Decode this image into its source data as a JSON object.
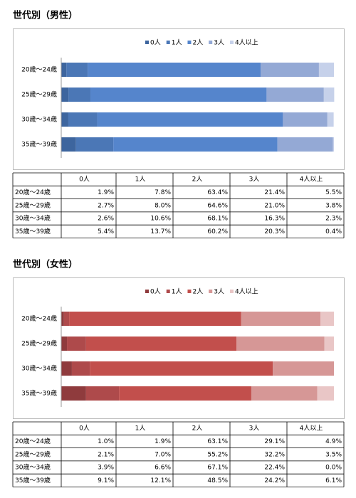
{
  "chart_data": [
    {
      "type": "bar",
      "orientation": "horizontal",
      "stacked": true,
      "legend": "top",
      "categories": [
        "20歳～24歳",
        "25歳～29歳",
        "30歳～34歳",
        "35歳～39歳"
      ],
      "series": [
        {
          "name": "0人",
          "color": "#3d659e",
          "values": [
            1.9,
            2.7,
            2.6,
            5.4
          ]
        },
        {
          "name": "1人",
          "color": "#4b77b6",
          "values": [
            7.8,
            8.0,
            10.6,
            13.7
          ]
        },
        {
          "name": "2人",
          "color": "#5585cc",
          "values": [
            63.4,
            64.6,
            68.1,
            60.2
          ]
        },
        {
          "name": "3人",
          "color": "#94a9d5",
          "values": [
            21.4,
            21.0,
            16.3,
            20.3
          ]
        },
        {
          "name": "4人以上",
          "color": "#c6d1ea",
          "values": [
            5.5,
            3.8,
            2.3,
            0.4
          ]
        }
      ]
    },
    {
      "type": "bar",
      "orientation": "horizontal",
      "stacked": true,
      "legend": "top",
      "categories": [
        "20歳～24歳",
        "25歳～29歳",
        "30歳～34歳",
        "35歳～39歳"
      ],
      "series": [
        {
          "name": "0人",
          "color": "#8f3b3d",
          "values": [
            1.0,
            2.1,
            3.9,
            9.1
          ]
        },
        {
          "name": "1人",
          "color": "#ae4a4b",
          "values": [
            1.9,
            7.0,
            6.6,
            12.1
          ]
        },
        {
          "name": "2人",
          "color": "#c24f4c",
          "values": [
            63.1,
            55.2,
            67.1,
            48.5
          ]
        },
        {
          "name": "3人",
          "color": "#d69796",
          "values": [
            29.1,
            32.2,
            22.4,
            24.2
          ]
        },
        {
          "name": "4人以上",
          "color": "#e9c6c6",
          "values": [
            4.9,
            3.5,
            0.0,
            6.1
          ]
        }
      ]
    }
  ],
  "sections": [
    {
      "title": "世代別（男性）",
      "table": {
        "columns": [
          "0人",
          "1人",
          "2人",
          "3人",
          "4人以上"
        ],
        "rows": [
          {
            "label": "20歳～24歳",
            "cells": [
              "1.9%",
              "7.8%",
              "63.4%",
              "21.4%",
              "5.5%"
            ]
          },
          {
            "label": "25歳～29歳",
            "cells": [
              "2.7%",
              "8.0%",
              "64.6%",
              "21.0%",
              "3.8%"
            ]
          },
          {
            "label": "30歳～34歳",
            "cells": [
              "2.6%",
              "10.6%",
              "68.1%",
              "16.3%",
              "2.3%"
            ]
          },
          {
            "label": "35歳～39歳",
            "cells": [
              "5.4%",
              "13.7%",
              "60.2%",
              "20.3%",
              "0.4%"
            ]
          }
        ]
      }
    },
    {
      "title": "世代別（女性）",
      "table": {
        "columns": [
          "0人",
          "1人",
          "2人",
          "3人",
          "4人以上"
        ],
        "rows": [
          {
            "label": "20歳～24歳",
            "cells": [
              "1.0%",
              "1.9%",
              "63.1%",
              "29.1%",
              "4.9%"
            ]
          },
          {
            "label": "25歳～29歳",
            "cells": [
              "2.1%",
              "7.0%",
              "55.2%",
              "32.2%",
              "3.5%"
            ]
          },
          {
            "label": "30歳～34歳",
            "cells": [
              "3.9%",
              "6.6%",
              "67.1%",
              "22.4%",
              "0.0%"
            ]
          },
          {
            "label": "35歳～39歳",
            "cells": [
              "9.1%",
              "12.1%",
              "48.5%",
              "24.2%",
              "6.1%"
            ]
          }
        ]
      }
    }
  ]
}
